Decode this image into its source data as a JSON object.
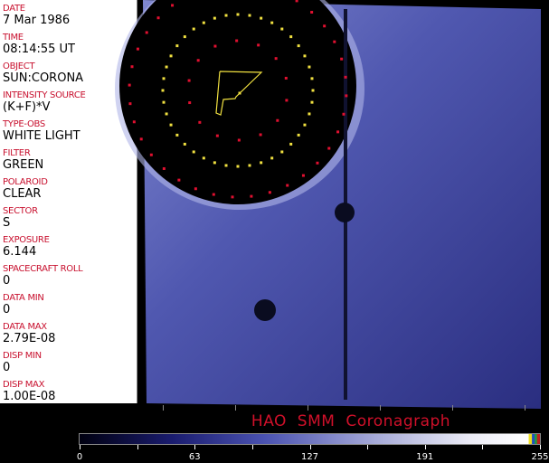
{
  "metadata": [
    {
      "label": "DATE",
      "value": "7 Mar 1986"
    },
    {
      "label": "TIME",
      "value": "08:14:55 UT"
    },
    {
      "label": "OBJECT",
      "value": "SUN:CORONA"
    },
    {
      "label": "INTENSITY SOURCE",
      "value": "(K+F)*V"
    },
    {
      "label": "TYPE-OBS",
      "value": "WHITE LIGHT"
    },
    {
      "label": "FILTER",
      "value": "GREEN"
    },
    {
      "label": "POLAROID",
      "value": "CLEAR"
    },
    {
      "label": "SECTOR",
      "value": "S"
    },
    {
      "label": "EXPOSURE",
      "value": "6.144"
    },
    {
      "label": "SPACECRAFT ROLL",
      "value": "0"
    },
    {
      "label": "DATA MIN",
      "value": "0"
    },
    {
      "label": "DATA MAX",
      "value": "2.79E-08"
    },
    {
      "label": "DISP MIN",
      "value": "0"
    },
    {
      "label": "DISP MAX",
      "value": "1.00E-08"
    }
  ],
  "title": "HAO  SMM  Coronagraph",
  "colorbar": {
    "ticks": [
      "0",
      "63",
      "127",
      "191",
      "255"
    ],
    "range": [
      0,
      255
    ]
  },
  "colors": {
    "label": "#c8102e",
    "overlay_yellow": "#f0e040",
    "overlay_red": "#e01030",
    "corona": "#4a52b0"
  }
}
